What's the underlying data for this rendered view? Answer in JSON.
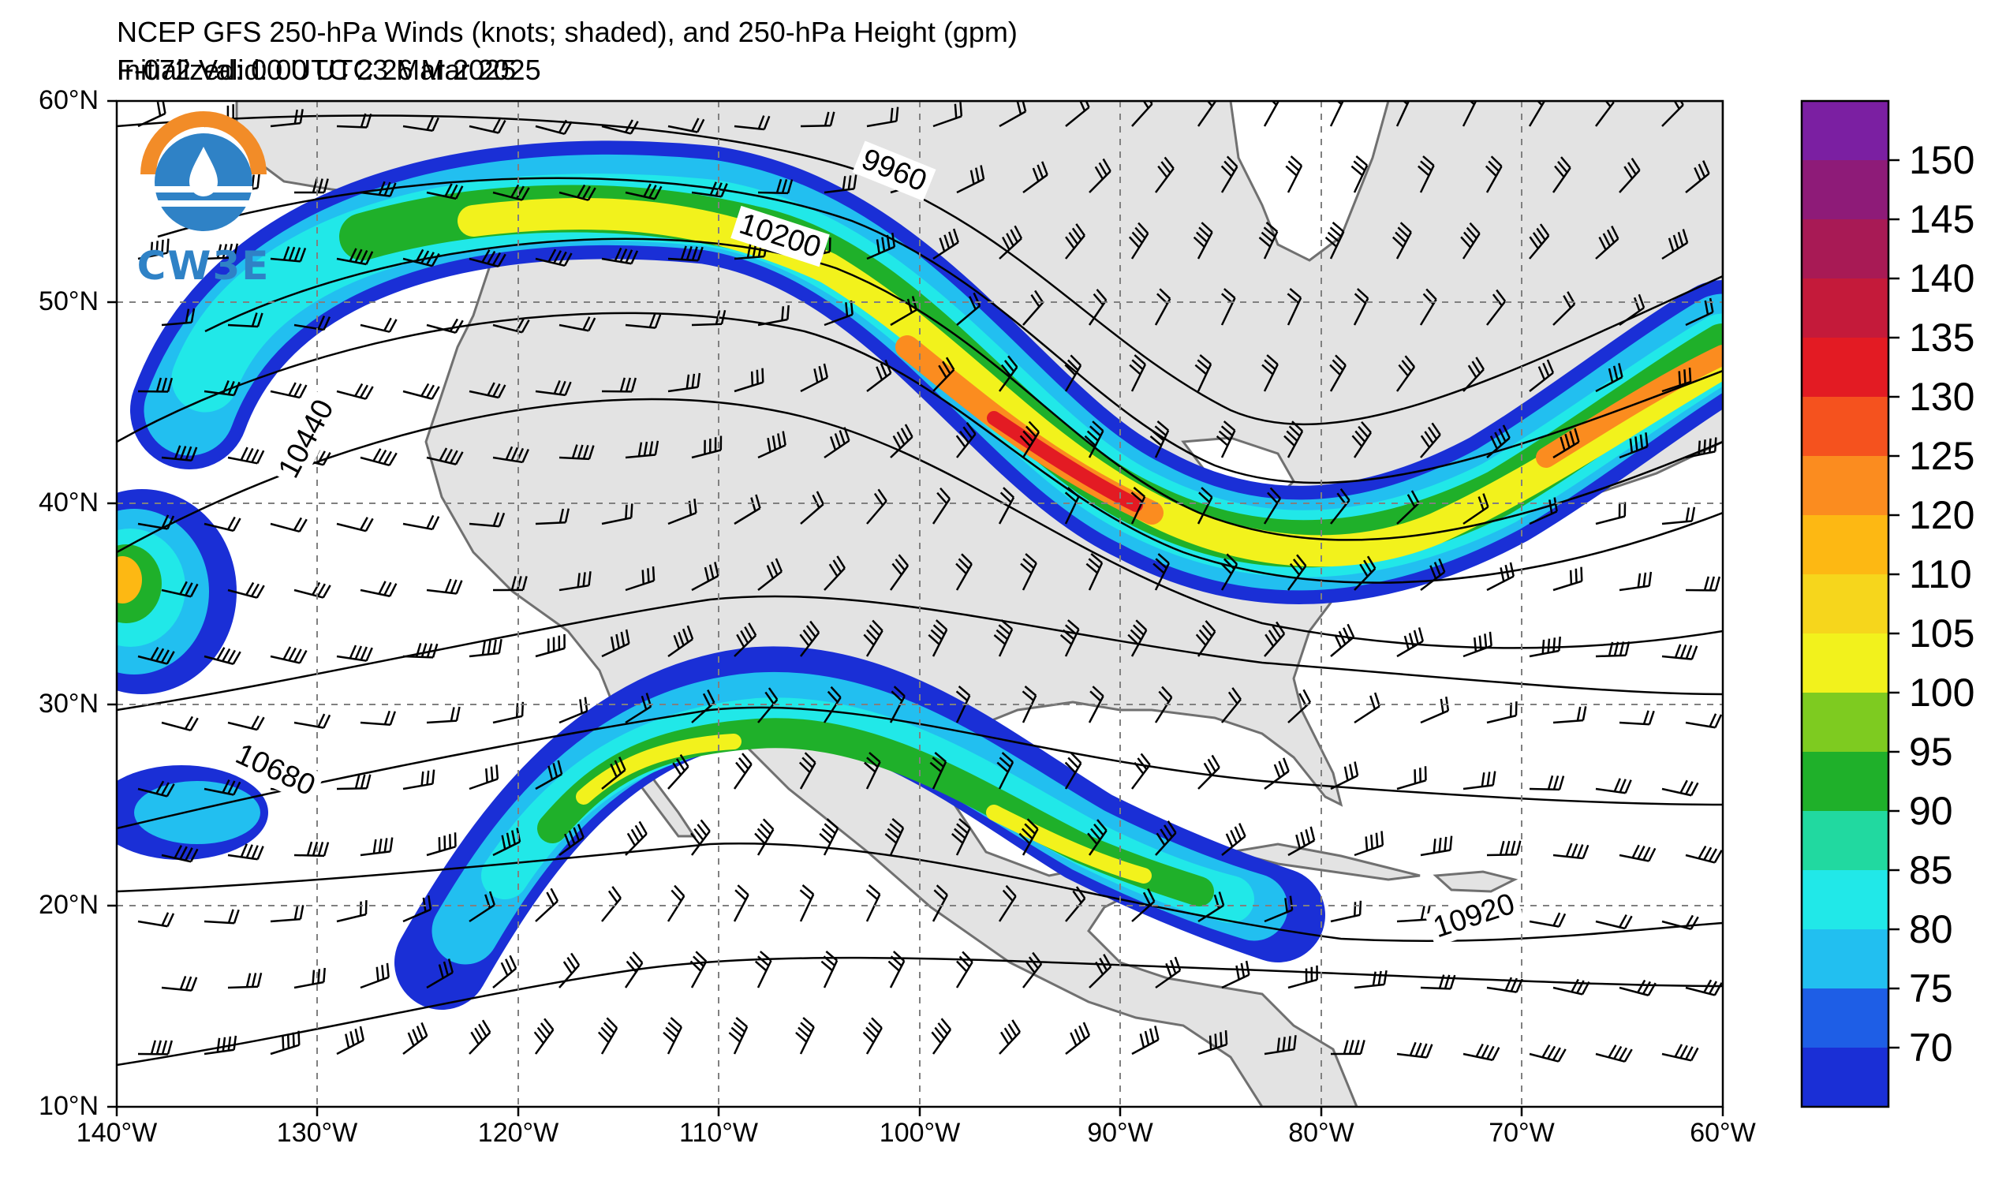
{
  "title": {
    "main": "NCEP GFS 250-hPa Winds (knots; shaded), and 250-hPa Height (gpm)",
    "initialized": "Initialized: 00 UTC 23 Mar 2025",
    "valid": "F-072  Valid: 00 UTC 26 Mar 2025"
  },
  "logo": {
    "text": "CW3E"
  },
  "axes": {
    "lat_labels": [
      "60°N",
      "50°N",
      "40°N",
      "30°N",
      "20°N",
      "10°N"
    ],
    "lon_labels": [
      "140°W",
      "130°W",
      "120°W",
      "110°W",
      "100°W",
      "90°W",
      "80°W",
      "70°W",
      "60°W"
    ]
  },
  "contour_labels": [
    "9960",
    "10200",
    "10440",
    "10680",
    "10920"
  ],
  "colorbar": {
    "labels": [
      "150",
      "145",
      "140",
      "135",
      "130",
      "125",
      "120",
      "110",
      "105",
      "100",
      "95",
      "90",
      "85",
      "80",
      "75",
      "70"
    ],
    "colors": [
      "#7b1fa2",
      "#8e1b78",
      "#a81a55",
      "#c41a3a",
      "#e31b23",
      "#f5521e",
      "#fb8c1f",
      "#fdb813",
      "#f6d61c",
      "#f2f21c",
      "#7ecb20",
      "#1fb02a",
      "#21d9a0",
      "#21e8e8",
      "#22bff0",
      "#1e5ee6",
      "#1a2fd6"
    ]
  },
  "colors": {
    "land": "#e3e3e3",
    "ocean": "#ffffff",
    "coast": "#707070",
    "grid": "#808080"
  }
}
